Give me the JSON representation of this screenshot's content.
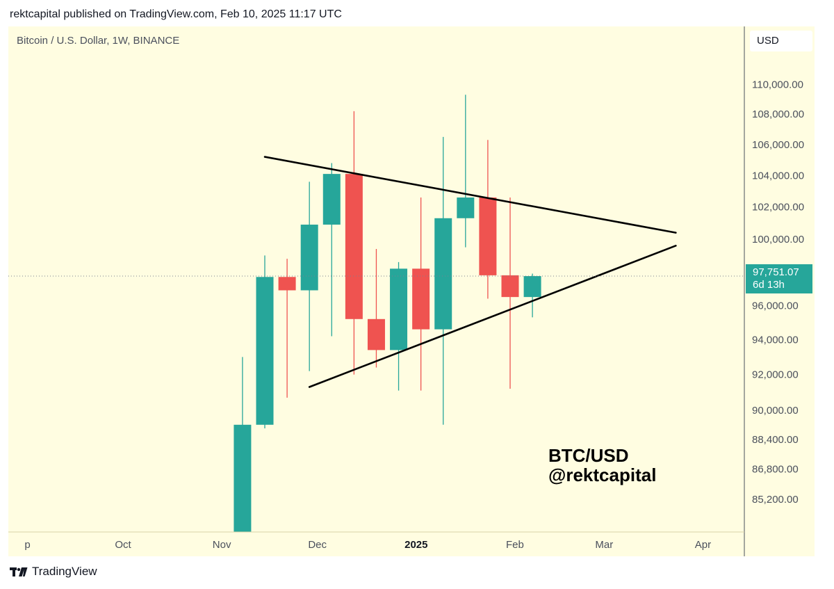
{
  "header": {
    "published": "rektcapital published on TradingView.com, Feb 10, 2025 11:17 UTC"
  },
  "chart": {
    "symbol_title": "Bitcoin / U.S. Dollar, 1W, BINANCE",
    "currency": "USD",
    "last_price": "97,751.07",
    "countdown": "6d 13h",
    "watermark_line1": "BTC/USD",
    "watermark_line2": "@rektcapital"
  },
  "footer": {
    "brand": "TradingView"
  },
  "colors": {
    "up": "#26a69a",
    "down": "#ef5350",
    "background": "#fffde1",
    "axis_text": "#4a4f5c",
    "trendline": "#000000"
  },
  "chart_data": {
    "type": "candlestick",
    "interval": "1W",
    "y_scale": "log",
    "ylim": [
      83500,
      114000
    ],
    "y_ticks": [
      {
        "value": 110000,
        "label": "110,000.00"
      },
      {
        "value": 108000,
        "label": "108,000.00"
      },
      {
        "value": 106000,
        "label": "106,000.00"
      },
      {
        "value": 104000,
        "label": "104,000.00"
      },
      {
        "value": 102000,
        "label": "102,000.00"
      },
      {
        "value": 100000,
        "label": "100,000.00"
      },
      {
        "value": 96000,
        "label": "96,000.00"
      },
      {
        "value": 94000,
        "label": "94,000.00"
      },
      {
        "value": 92000,
        "label": "92,000.00"
      },
      {
        "value": 90000,
        "label": "90,000.00"
      },
      {
        "value": 88400,
        "label": "88,400.00"
      },
      {
        "value": 86800,
        "label": "86,800.00"
      },
      {
        "value": 85200,
        "label": "85,200.00"
      }
    ],
    "xlim": [
      "2024-08-26",
      "2025-04-14"
    ],
    "x_ticks": [
      {
        "date": "2024-09-01",
        "label": "p",
        "bold": false
      },
      {
        "date": "2024-10-01",
        "label": "Oct",
        "bold": false
      },
      {
        "date": "2024-11-01",
        "label": "Nov",
        "bold": false
      },
      {
        "date": "2024-12-01",
        "label": "Dec",
        "bold": false
      },
      {
        "date": "2025-01-01",
        "label": "2025",
        "bold": true
      },
      {
        "date": "2025-02-01",
        "label": "Feb",
        "bold": false
      },
      {
        "date": "2025-03-01",
        "label": "Mar",
        "bold": false
      },
      {
        "date": "2025-04-01",
        "label": "Apr",
        "bold": false
      }
    ],
    "candles": [
      {
        "date": "2024-11-04",
        "open": 80000,
        "high": 93000,
        "low": 80000,
        "close": 89200
      },
      {
        "date": "2024-11-11",
        "open": 89200,
        "high": 99000,
        "low": 89000,
        "close": 97700
      },
      {
        "date": "2024-11-18",
        "open": 97700,
        "high": 98800,
        "low": 90700,
        "close": 96900
      },
      {
        "date": "2024-11-25",
        "open": 96900,
        "high": 103600,
        "low": 92200,
        "close": 100900
      },
      {
        "date": "2024-12-02",
        "open": 100900,
        "high": 104800,
        "low": 94200,
        "close": 104100
      },
      {
        "date": "2024-12-09",
        "open": 104100,
        "high": 108200,
        "low": 92000,
        "close": 95200
      },
      {
        "date": "2024-12-16",
        "open": 95200,
        "high": 99400,
        "low": 92400,
        "close": 93400
      },
      {
        "date": "2024-12-23",
        "open": 93400,
        "high": 98600,
        "low": 91100,
        "close": 98200
      },
      {
        "date": "2024-12-30",
        "open": 98200,
        "high": 102600,
        "low": 91100,
        "close": 94600
      },
      {
        "date": "2025-01-06",
        "open": 94600,
        "high": 106500,
        "low": 89200,
        "close": 101300
      },
      {
        "date": "2025-01-13",
        "open": 101300,
        "high": 109300,
        "low": 99500,
        "close": 102600
      },
      {
        "date": "2025-01-20",
        "open": 102600,
        "high": 106300,
        "low": 96400,
        "close": 97800
      },
      {
        "date": "2025-01-27",
        "open": 97800,
        "high": 102600,
        "low": 91200,
        "close": 96500
      },
      {
        "date": "2025-02-03",
        "open": 96500,
        "high": 97900,
        "low": 95300,
        "close": 97751.07
      }
    ],
    "last_price": 97751.07,
    "trendlines": [
      {
        "name": "upper",
        "start": {
          "date": "2024-11-11",
          "price": 105200
        },
        "end": {
          "date": "2025-03-20",
          "price": 100400
        }
      },
      {
        "name": "lower",
        "start": {
          "date": "2024-11-25",
          "price": 91300
        },
        "end": {
          "date": "2025-03-20",
          "price": 99600
        }
      }
    ]
  }
}
